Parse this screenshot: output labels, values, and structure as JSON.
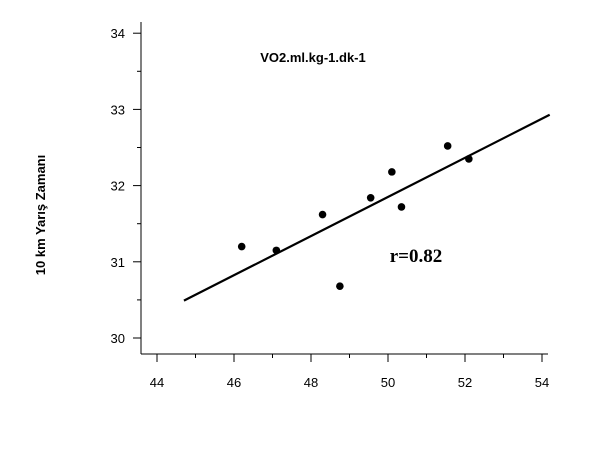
{
  "chart_data": {
    "type": "scatter",
    "title": "VO2.ml.kg-1.dk-1",
    "xlabel": "",
    "ylabel": "10 km Yarış Zamanı",
    "xlim": [
      43.5,
      54
    ],
    "ylim": [
      29.8,
      34.3
    ],
    "xticks": [
      44,
      46,
      48,
      50,
      52,
      54
    ],
    "yticks": [
      30,
      31,
      32,
      33,
      34
    ],
    "grid": false,
    "series": [
      {
        "points": [
          {
            "x": 46.2,
            "y": 31.2
          },
          {
            "x": 47.1,
            "y": 31.15
          },
          {
            "x": 48.3,
            "y": 31.62
          },
          {
            "x": 48.75,
            "y": 30.68
          },
          {
            "x": 49.55,
            "y": 31.84
          },
          {
            "x": 50.1,
            "y": 32.18
          },
          {
            "x": 50.35,
            "y": 31.72
          },
          {
            "x": 51.55,
            "y": 32.52
          },
          {
            "x": 52.1,
            "y": 32.35
          }
        ]
      }
    ],
    "trendline": {
      "x1": 44.7,
      "y1": 30.49,
      "x2": 54.2,
      "y2": 32.93
    },
    "annotation": "r=0.82"
  }
}
